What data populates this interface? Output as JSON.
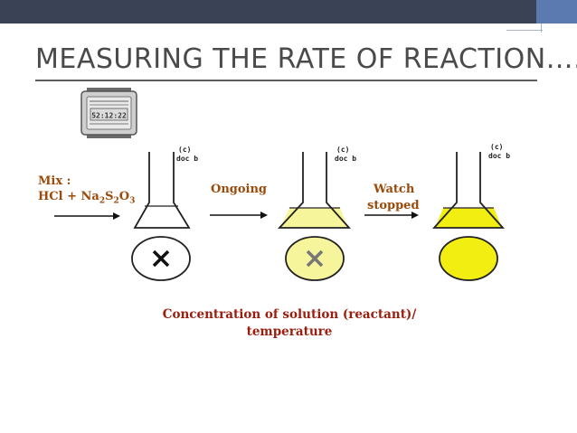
{
  "title": "MEASURING THE RATE OF REACTION….",
  "steps": {
    "mix_label": "Mix :",
    "mix_formula": {
      "parts": [
        "HCl + Na",
        "2",
        "S",
        "2",
        "O",
        "3"
      ]
    },
    "ongoing_label": "Ongoing",
    "watch_label_line1": "Watch",
    "watch_label_line2": "stopped"
  },
  "flask_tag": {
    "line1": "(c)",
    "line2": "doc b"
  },
  "caption": {
    "line1": "Concentration of solution (reactant)/",
    "line2": "temperature"
  },
  "colors": {
    "header_dark": "#3a4356",
    "header_accent": "#5b7bb0",
    "label_text": "#9b4a0a",
    "caption_text": "#9b1d0d",
    "solution_light": "#f6f59b",
    "solution_full": "#f2ee12"
  }
}
